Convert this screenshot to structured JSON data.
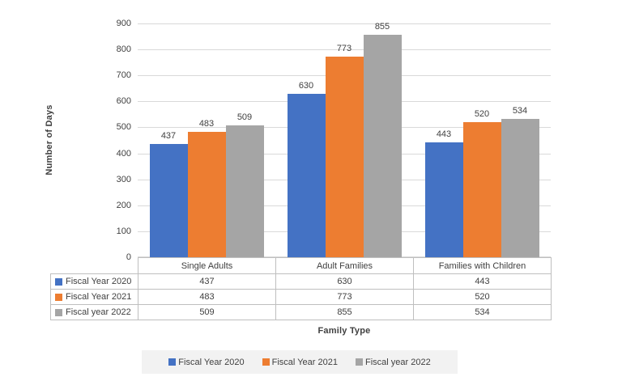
{
  "chart_data": {
    "type": "bar",
    "categories": [
      "Single Adults",
      "Adult Families",
      "Families with Children"
    ],
    "series": [
      {
        "name": "Fiscal Year 2020",
        "color": "#4472c4",
        "values": [
          437,
          630,
          443
        ]
      },
      {
        "name": "Fiscal Year 2021",
        "color": "#ed7d31",
        "values": [
          483,
          773,
          520
        ]
      },
      {
        "name": "Fiscal year 2022",
        "color": "#a5a5a5",
        "values": [
          509,
          855,
          534
        ]
      }
    ],
    "title": "",
    "xlabel": "Family Type",
    "ylabel": "Number of Days",
    "ylim": [
      0,
      900
    ],
    "yticks": [
      0,
      100,
      200,
      300,
      400,
      500,
      600,
      700,
      800,
      900
    ],
    "grid": true,
    "legend_position": "bottom",
    "data_labels": true,
    "data_table": true
  },
  "colors": {
    "bar_blue": "#4472c4",
    "bar_orange": "#ed7d31",
    "bar_gray": "#a5a5a5",
    "gridline": "#d9d9d9",
    "table_border": "#bfbfbf",
    "text": "#404040",
    "legend_background": "#f2f2f2",
    "background": "#ffffff"
  }
}
